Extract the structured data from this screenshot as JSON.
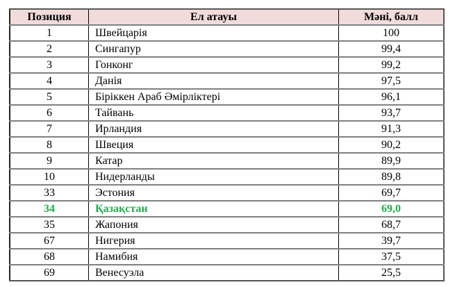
{
  "table": {
    "headers": [
      "Позиция",
      "Ел атауы",
      "Мәні, балл"
    ],
    "highlight_color": "#1fae4b",
    "header_bg": "#f2dcdb",
    "rows": [
      {
        "pos": "1",
        "name": "Швейцарія",
        "value": "100"
      },
      {
        "pos": "2",
        "name": "Сингапур",
        "value": "99,4"
      },
      {
        "pos": "3",
        "name": "Гонконг",
        "value": "99,2"
      },
      {
        "pos": "4",
        "name": "Данія",
        "value": "97,5"
      },
      {
        "pos": "5",
        "name": "Біріккен Араб Әмірліктері",
        "value": "96,1"
      },
      {
        "pos": "6",
        "name": "Тайвань",
        "value": "93,7"
      },
      {
        "pos": "7",
        "name": "Ирландия",
        "value": "91,3"
      },
      {
        "pos": "8",
        "name": "Швеция",
        "value": "90,2"
      },
      {
        "pos": "9",
        "name": "Катар",
        "value": "89,9"
      },
      {
        "pos": "10",
        "name": "Нидерланды",
        "value": "89,8"
      },
      {
        "pos": "33",
        "name": "Эстония",
        "value": "69,7"
      },
      {
        "pos": "34",
        "name": "Қазақстан",
        "value": "69,0",
        "highlighted": true
      },
      {
        "pos": "35",
        "name": "Жапония",
        "value": "68,7"
      },
      {
        "pos": "67",
        "name": "Нигерия",
        "value": "39,7"
      },
      {
        "pos": "68",
        "name": "Намибия",
        "value": "37,5"
      },
      {
        "pos": "69",
        "name": "Венесуэла",
        "value": "25,5"
      }
    ]
  }
}
